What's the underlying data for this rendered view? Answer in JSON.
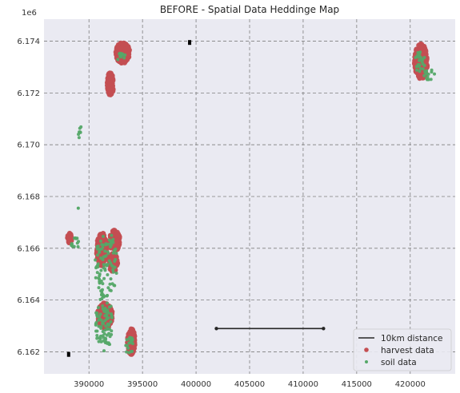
{
  "chart_data": {
    "type": "scatter",
    "title": "BEFORE - Spatial Data Heddinge Map",
    "xlabel": "",
    "ylabel": "",
    "y_offset_label": "1e6",
    "xlim": [
      385800,
      424200
    ],
    "ylim": [
      6161150,
      6174850
    ],
    "x_ticks": [
      390000,
      395000,
      400000,
      405000,
      410000,
      415000,
      420000
    ],
    "x_tick_labels": [
      "390000",
      "395000",
      "400000",
      "405000",
      "410000",
      "415000",
      "420000"
    ],
    "y_ticks": [
      6162000,
      6164000,
      6166000,
      6168000,
      6170000,
      6172000,
      6174000
    ],
    "y_tick_labels": [
      "6.162",
      "6.164",
      "6.166",
      "6.168",
      "6.170",
      "6.172",
      "6.174"
    ],
    "grid": true,
    "legend_position": "lower-right",
    "colors": {
      "plot_bg": "#eaeaf2",
      "grid": "#7f7f7f",
      "harvest": "#c44e52",
      "soil": "#55a868",
      "distance_line": "#262626",
      "marker": "#000000"
    },
    "series": [
      {
        "name": "10km distance",
        "kind": "line",
        "x": [
          401900,
          411900
        ],
        "y": [
          6162900,
          6162900
        ]
      },
      {
        "name": "harvest data",
        "kind": "cluster",
        "clusters": [
          {
            "x": [
              392500,
              393800
            ],
            "y": [
              6173150,
              6173950
            ]
          },
          {
            "x": [
              391700,
              392300
            ],
            "y": [
              6171900,
              6172800
            ]
          },
          {
            "x": [
              388000,
              388400
            ],
            "y": [
              6166200,
              6166600
            ]
          },
          {
            "x": [
              390700,
              391700
            ],
            "y": [
              6165300,
              6166600
            ]
          },
          {
            "x": [
              391900,
              392900
            ],
            "y": [
              6165900,
              6166700
            ]
          },
          {
            "x": [
              391800,
              392700
            ],
            "y": [
              6165100,
              6165800
            ]
          },
          {
            "x": [
              390800,
              392200
            ],
            "y": [
              6162900,
              6163900
            ]
          },
          {
            "x": [
              393600,
              394300
            ],
            "y": [
              6161900,
              6162900
            ]
          },
          {
            "x": [
              420400,
              421600
            ],
            "y": [
              6172500,
              6173900
            ]
          }
        ]
      },
      {
        "name": "soil data",
        "kind": "cluster",
        "clusters": [
          {
            "x": [
              389000,
              389300
            ],
            "y": [
              6170200,
              6170800
            ]
          },
          {
            "x": [
              389000,
              389000
            ],
            "y": [
              6167550,
              6167550
            ]
          },
          {
            "x": [
              388300,
              389200
            ],
            "y": [
              6166000,
              6166400
            ]
          },
          {
            "x": [
              390500,
              392800
            ],
            "y": [
              6164200,
              6166600
            ]
          },
          {
            "x": [
              390600,
              392200
            ],
            "y": [
              6162000,
              6164300
            ]
          },
          {
            "x": [
              393400,
              394200
            ],
            "y": [
              6161800,
              6162600
            ]
          },
          {
            "x": [
              392600,
              393400
            ],
            "y": [
              6173200,
              6173600
            ]
          },
          {
            "x": [
              421200,
              422400
            ],
            "y": [
              6172500,
              6172900
            ]
          },
          {
            "x": [
              420400,
              421400
            ],
            "y": [
              6172800,
              6173600
            ]
          }
        ]
      },
      {
        "name": "corner markers",
        "kind": "markers",
        "x": [
          399400,
          388100
        ],
        "y": [
          6173950,
          6161900
        ]
      }
    ]
  }
}
